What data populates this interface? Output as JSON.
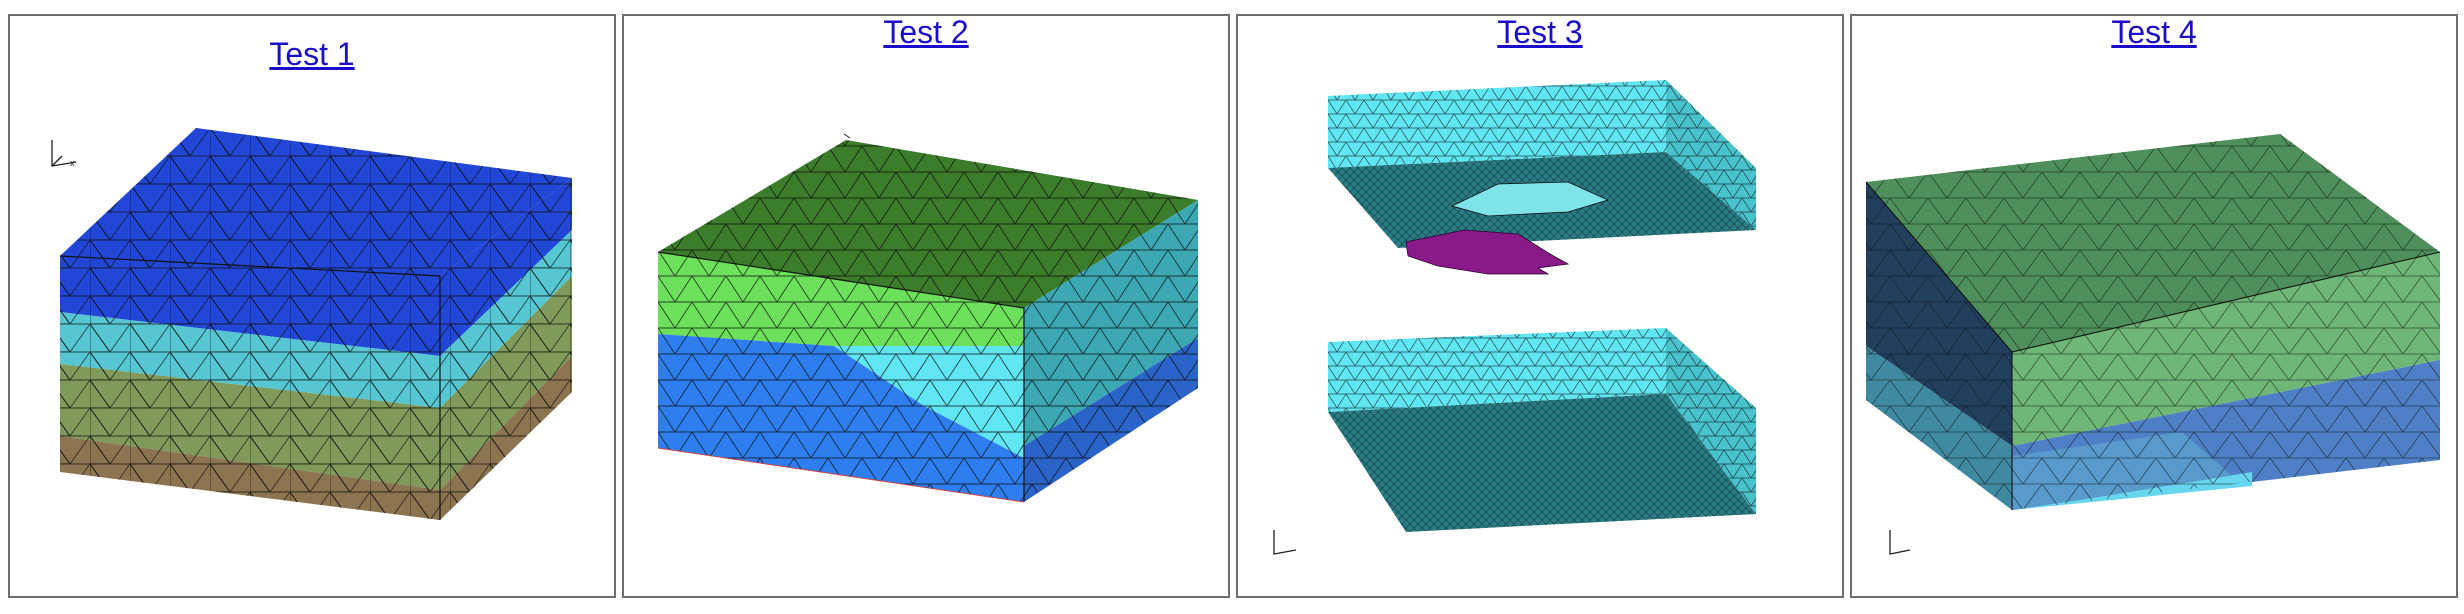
{
  "panels": [
    {
      "id": "test-1",
      "title": "Test 1"
    },
    {
      "id": "test-2",
      "title": "Test 2"
    },
    {
      "id": "test-3",
      "title": "Test 3"
    },
    {
      "id": "test-4",
      "title": "Test 4"
    }
  ],
  "colors": {
    "link": "#1a0dcc",
    "border": "#6f6f6f",
    "mesh_line": "#0d0d0d",
    "blue_dark": "#2246d6",
    "cyan": "#55c6d2",
    "olive": "#7f9a5a",
    "brown": "#8c7450",
    "green_dark": "#3c7d2c",
    "green_bright": "#6ce05a",
    "blue_bright": "#2f7ef0",
    "cyan_bright": "#5fe6f2",
    "teal_dark": "#2d8f9a",
    "magenta": "#8a1a8a",
    "slate": "#2b4f72",
    "green_soft": "#6fb777",
    "blue_soft": "#4f7fc6"
  },
  "icons": [
    "axis-triad-icon"
  ]
}
